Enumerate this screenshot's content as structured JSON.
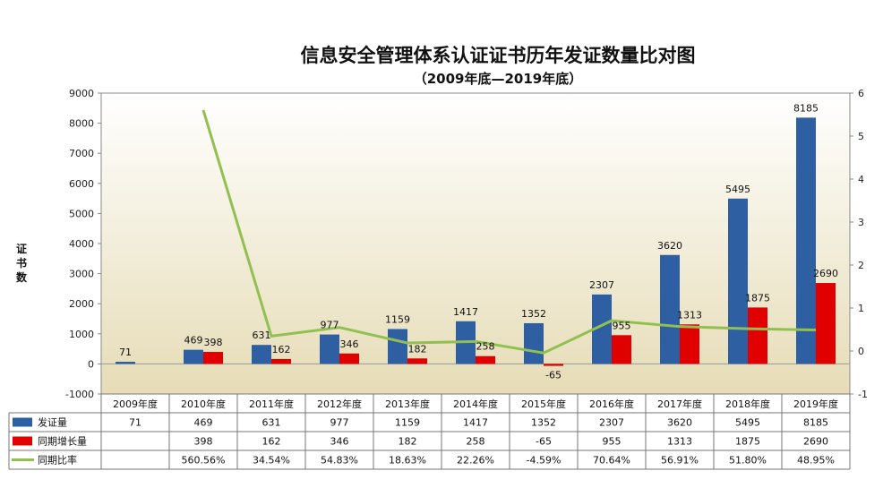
{
  "chart_data": {
    "type": "bar",
    "title": "信息安全管理体系认证证书历年发证数量比对图",
    "subtitle": "（2009年底—2019年底）",
    "ylabel": "证书数",
    "ylim": [
      -1000,
      9000
    ],
    "yticks": [
      -1000,
      0,
      1000,
      2000,
      3000,
      4000,
      5000,
      6000,
      7000,
      8000,
      9000
    ],
    "y2lim": [
      -1,
      6
    ],
    "y2ticks": [
      -1,
      0,
      1,
      2,
      3,
      4,
      5,
      6
    ],
    "categories": [
      "2009年度",
      "2010年度",
      "2011年度",
      "2012年度",
      "2013年度",
      "2014年度",
      "2015年度",
      "2016年度",
      "2017年度",
      "2018年度",
      "2019年度"
    ],
    "series": [
      {
        "name": "发证量",
        "type": "bar",
        "color": "#2e5fa3",
        "values": [
          71,
          469,
          631,
          977,
          1159,
          1417,
          1352,
          2307,
          3620,
          5495,
          8185
        ],
        "labels": [
          "71",
          "469",
          "631",
          "977",
          "1159",
          "1417",
          "1352",
          "2307",
          "3620",
          "5495",
          "8185"
        ]
      },
      {
        "name": "同期增长量",
        "type": "bar",
        "color": "#e00000",
        "values": [
          null,
          398,
          162,
          346,
          182,
          258,
          -65,
          955,
          1313,
          1875,
          2690
        ],
        "labels": [
          "",
          "398",
          "162",
          "346",
          "182",
          "258",
          "-65",
          "955",
          "1313",
          "1875",
          "2690"
        ]
      },
      {
        "name": "同期比率",
        "type": "line",
        "axis": "secondary",
        "color": "#92c050",
        "values": [
          null,
          5.6056,
          0.3454,
          0.5483,
          0.1863,
          0.2226,
          -0.0459,
          0.7064,
          0.5691,
          0.518,
          0.4895
        ],
        "labels": [
          "",
          "560.56%",
          "34.54%",
          "54.83%",
          "18.63%",
          "22.26%",
          "-4.59%",
          "70.64%",
          "56.91%",
          "51.80%",
          "48.95%"
        ]
      }
    ],
    "table": {
      "show": true
    }
  }
}
